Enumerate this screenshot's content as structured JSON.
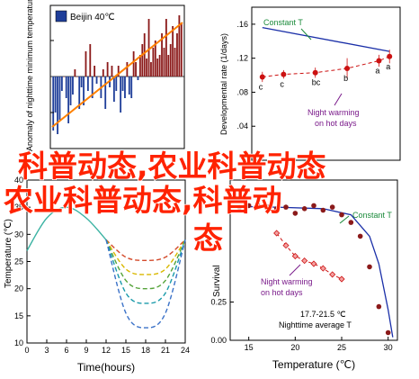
{
  "watermark": [
    "科普动态,农业科普动态",
    "农业科普动态,科普动",
    "态"
  ],
  "chart_data": [
    {
      "panel": "top-left",
      "type": "bar",
      "ylabel": "Anomaly of nighttime minimum temperature on hot days",
      "legend": "Beijin 40℃",
      "colors": {
        "positive": "#8b1a1a",
        "negative": "#1f3e99",
        "trend": "#ff8000"
      },
      "values": [
        -1.5,
        -1.0,
        -1.6,
        -1.2,
        -0.4,
        0.0,
        -0.6,
        -1.3,
        -0.8,
        -0.5,
        0.2,
        0.0,
        -0.9,
        -0.3,
        -0.8,
        0.7,
        -0.4,
        0.9,
        -0.6,
        0.3,
        -0.2,
        0.0,
        -0.6,
        0.2,
        -0.9,
        0.4,
        -0.3,
        0.3,
        -0.7,
        -0.4,
        0.3,
        -1.0,
        -0.4,
        -0.6,
        0.4,
        -0.5,
        -0.6,
        0.7,
        0.4,
        -0.1,
        0.6,
        0.9,
        1.2,
        0.5,
        1.6,
        0.4,
        0.8,
        1.0,
        0.5,
        0.6,
        1.2,
        0.8,
        1.6,
        0.6,
        0.9,
        1.4,
        0.8,
        1.2,
        1.7,
        1.5
      ],
      "trend": {
        "start": -1.4,
        "end": 1.5
      }
    },
    {
      "panel": "top-right",
      "type": "scatter",
      "ylabel": "Developmental rate (1/days)",
      "yticks": [
        "0",
        ".04",
        ".08",
        ".12",
        ".16"
      ],
      "ylim": [
        0,
        0.18
      ],
      "annotations": [
        "Constant T",
        "Night warming on hot days"
      ],
      "points": [
        {
          "x": 14,
          "y": 0.098,
          "label": "c",
          "err": 0.006
        },
        {
          "x": 16,
          "y": 0.101,
          "label": "c",
          "err": 0.005
        },
        {
          "x": 19,
          "y": 0.103,
          "label": "bc",
          "err": 0.006
        },
        {
          "x": 22,
          "y": 0.108,
          "label": "b",
          "err": 0.012
        },
        {
          "x": 25,
          "y": 0.117,
          "label": "a",
          "err": 0.007
        },
        {
          "x": 26,
          "y": 0.122,
          "label": "a",
          "err": 0.008
        }
      ],
      "curve": [
        [
          14,
          0.156
        ],
        [
          26,
          0.128
        ]
      ]
    },
    {
      "panel": "bottom-left",
      "type": "line",
      "xlabel": "Time(hours)",
      "ylabel": "Temperature (℃)",
      "xticks": [
        "0",
        "3",
        "6",
        "9",
        "12",
        "15",
        "18",
        "21",
        "24"
      ],
      "yticks": [
        "10",
        "15",
        "20",
        "25",
        "30",
        "35",
        "40"
      ],
      "xlim": [
        0,
        24
      ],
      "ylim": [
        10,
        40
      ],
      "series": [
        {
          "kind": "base",
          "color": "#3bb3a3",
          "x": [
            0,
            3,
            6,
            9,
            12
          ],
          "y": [
            27,
            33,
            35,
            33,
            29
          ]
        },
        {
          "kind": "night",
          "color": "#d44a2a",
          "x": [
            12,
            15,
            18,
            21,
            24
          ],
          "y": [
            29,
            25.8,
            25.2,
            25.8,
            29
          ]
        },
        {
          "kind": "night",
          "color": "#d9b800",
          "x": [
            12,
            15,
            18,
            21,
            24
          ],
          "y": [
            29,
            23.6,
            22.6,
            23.6,
            29
          ]
        },
        {
          "kind": "night",
          "color": "#55a33a",
          "x": [
            12,
            15,
            18,
            21,
            24
          ],
          "y": [
            29,
            21.5,
            20,
            21.5,
            29
          ]
        },
        {
          "kind": "night",
          "color": "#1a9aaa",
          "x": [
            12,
            15,
            18,
            21,
            24
          ],
          "y": [
            29,
            19.2,
            17.3,
            19.2,
            29
          ]
        },
        {
          "kind": "night",
          "color": "#3b72c8",
          "x": [
            12,
            15,
            18,
            21,
            24
          ],
          "y": [
            29,
            15.5,
            12.8,
            15.5,
            29
          ]
        }
      ]
    },
    {
      "panel": "bottom-right",
      "type": "scatter",
      "xlabel": "Temperature (℃)",
      "ylabel": "Survival",
      "xticks": [
        "15",
        "20",
        "25",
        "30"
      ],
      "yticks": [
        "0.00",
        "0.25"
      ],
      "xlim": [
        13,
        31
      ],
      "ylim": [
        0,
        1
      ],
      "annotations": [
        "Constant T",
        "Night warming on hot days",
        "17.7-21.5 ℃",
        "Nighttime average T"
      ],
      "constant": [
        [
          14,
          0.87
        ],
        [
          15,
          0.88
        ],
        [
          16,
          0.88
        ],
        [
          17,
          0.87
        ],
        [
          18,
          0.86
        ],
        [
          19,
          0.87
        ],
        [
          20,
          0.83
        ],
        [
          21,
          0.86
        ],
        [
          22,
          0.88
        ],
        [
          23,
          0.85
        ],
        [
          24,
          0.87
        ],
        [
          25,
          0.82
        ],
        [
          26,
          0.77
        ],
        [
          27,
          0.68
        ],
        [
          28,
          0.48
        ],
        [
          29,
          0.22
        ],
        [
          30,
          0.05
        ]
      ],
      "night": [
        [
          18,
          0.7
        ],
        [
          19,
          0.62
        ],
        [
          20,
          0.55
        ],
        [
          21,
          0.52
        ],
        [
          22,
          0.5
        ],
        [
          23,
          0.47
        ],
        [
          24,
          0.43
        ],
        [
          25,
          0.4
        ]
      ],
      "fit": [
        [
          13,
          0.875
        ],
        [
          18,
          0.87
        ],
        [
          23,
          0.86
        ],
        [
          26,
          0.82
        ],
        [
          28,
          0.68
        ],
        [
          29,
          0.5
        ],
        [
          30,
          0.2
        ],
        [
          30.5,
          0.02
        ]
      ]
    }
  ]
}
